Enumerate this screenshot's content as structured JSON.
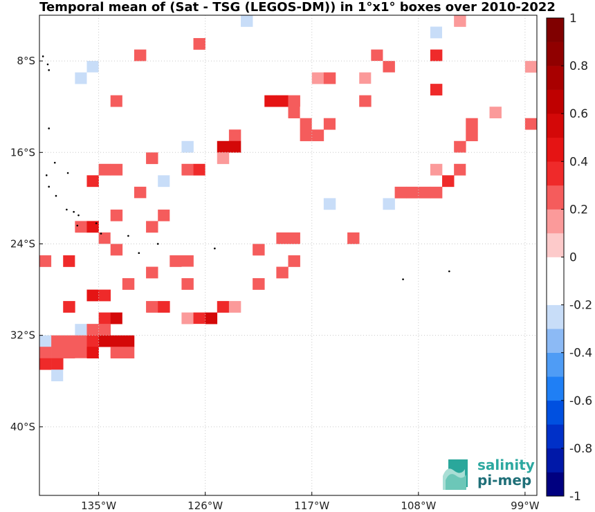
{
  "title": "Temporal mean of (Sat - TSG (LEGOS-DM)) in 1°x1° boxes over 2010-2022",
  "map": {
    "lon_range": [
      -140,
      -98
    ],
    "lat_range": [
      -46,
      -4
    ],
    "x_ticks": [
      {
        "value": -135,
        "label": "135°W"
      },
      {
        "value": -126,
        "label": "126°W"
      },
      {
        "value": -117,
        "label": "117°W"
      },
      {
        "value": -108,
        "label": "108°W"
      },
      {
        "value": -99,
        "label": "99°W"
      }
    ],
    "y_ticks": [
      {
        "value": -8,
        "label": "8°S"
      },
      {
        "value": -16,
        "label": "16°S"
      },
      {
        "value": -24,
        "label": "24°S"
      },
      {
        "value": -32,
        "label": "32°S"
      },
      {
        "value": -40,
        "label": "40°S"
      }
    ],
    "grid": true
  },
  "colorbar": {
    "range": [
      -1,
      1
    ],
    "ticks": [
      {
        "value": 1,
        "label": "1"
      },
      {
        "value": 0.8,
        "label": "0.8"
      },
      {
        "value": 0.6,
        "label": "0.6"
      },
      {
        "value": 0.4,
        "label": "0.4"
      },
      {
        "value": 0.2,
        "label": "0.2"
      },
      {
        "value": 0,
        "label": "0"
      },
      {
        "value": -0.2,
        "label": "-0.2"
      },
      {
        "value": -0.4,
        "label": "-0.4"
      },
      {
        "value": -0.6,
        "label": "-0.6"
      },
      {
        "value": -0.8,
        "label": "-0.8"
      },
      {
        "value": -1,
        "label": "-1"
      }
    ],
    "colors": [
      "#000080",
      "#0018a8",
      "#0030c8",
      "#0050e0",
      "#1f7ff5",
      "#4f9cf5",
      "#8cbaf5",
      "#c8ddf8",
      "#ffffff",
      "#ffffff",
      "#fdcaca",
      "#fb9a9a",
      "#f55c5c",
      "#ef2a2a",
      "#e51414",
      "#d40808",
      "#bf0000",
      "#a80000",
      "#900000",
      "#800000"
    ]
  },
  "chart_data": {
    "type": "heatmap",
    "title": "Temporal mean of (Sat - TSG (LEGOS-DM)) in 1°x1° boxes over 2010-2022",
    "x_axis": "longitude (°W)",
    "y_axis": "latitude (°S)",
    "value_range": [
      -1,
      1
    ],
    "cells": [
      [
        -122.5,
        -4.5,
        -0.3
      ],
      [
        -104.5,
        -4.5,
        0.15
      ],
      [
        -102.5,
        -4.5,
        -0.1
      ],
      [
        -106.5,
        -5.5,
        -0.3
      ],
      [
        -105.5,
        -5.5,
        -0.15
      ],
      [
        -128.5,
        -6.5,
        -0.15
      ],
      [
        -126.5,
        -6.5,
        0.2
      ],
      [
        -103.5,
        -6.5,
        -0.1
      ],
      [
        -131.5,
        -7.5,
        0.2
      ],
      [
        -111.5,
        -7.5,
        0.2
      ],
      [
        -110.5,
        -7.5,
        -0.15
      ],
      [
        -106.5,
        -7.5,
        0.3
      ],
      [
        -135.5,
        -8.5,
        -0.3
      ],
      [
        -134.5,
        -8.5,
        -0.1
      ],
      [
        -132.5,
        -8.5,
        -0.15
      ],
      [
        -111.5,
        -8.5,
        -0.15
      ],
      [
        -110.5,
        -8.5,
        0.2
      ],
      [
        -108.5,
        -8.5,
        -0.15
      ],
      [
        -107.5,
        -8.5,
        -0.15
      ],
      [
        -98.5,
        -8.5,
        0.15
      ],
      [
        -137.5,
        -9.5,
        -0.15
      ],
      [
        -136.5,
        -9.5,
        -0.3
      ],
      [
        -135.5,
        -9.5,
        -0.15
      ],
      [
        -133.5,
        -9.5,
        -0.15
      ],
      [
        -116.5,
        -9.5,
        0.15
      ],
      [
        -115.5,
        -9.5,
        0.2
      ],
      [
        -112.5,
        -9.5,
        0.15
      ],
      [
        -111.5,
        -9.5,
        -0.15
      ],
      [
        -110.5,
        -9.5,
        -0.15
      ],
      [
        -138.5,
        -10.5,
        -0.15
      ],
      [
        -117.5,
        -10.5,
        -0.15
      ],
      [
        -112.5,
        -10.5,
        -0.15
      ],
      [
        -111.5,
        -10.5,
        -0.15
      ],
      [
        -106.5,
        -10.5,
        0.3
      ],
      [
        -103.5,
        -10.5,
        -0.15
      ],
      [
        -99.5,
        -10.5,
        -0.15
      ],
      [
        -139.5,
        -11.5,
        -0.15
      ],
      [
        -133.5,
        -11.5,
        0.2
      ],
      [
        -132.5,
        -11.5,
        -0.15
      ],
      [
        -120.5,
        -11.5,
        0.4
      ],
      [
        -119.5,
        -11.5,
        0.4
      ],
      [
        -118.5,
        -11.5,
        0.2
      ],
      [
        -112.5,
        -11.5,
        0.2
      ],
      [
        -118.5,
        -12.5,
        0.2
      ],
      [
        -117.5,
        -12.5,
        -0.15
      ],
      [
        -116.5,
        -12.5,
        -0.2
      ],
      [
        -109.5,
        -12.5,
        -0.15
      ],
      [
        -101.5,
        -12.5,
        0.15
      ],
      [
        -124.5,
        -13.5,
        -0.15
      ],
      [
        -123.5,
        -13.5,
        -0.15
      ],
      [
        -122.5,
        -13.5,
        -0.15
      ],
      [
        -121.5,
        -13.5,
        -0.15
      ],
      [
        -119.5,
        -13.5,
        -0.15
      ],
      [
        -117.5,
        -13.5,
        0.2
      ],
      [
        -116.5,
        -13.5,
        -0.15
      ],
      [
        -115.5,
        -13.5,
        0.2
      ],
      [
        -114.5,
        -13.5,
        -0.15
      ],
      [
        -103.5,
        -13.5,
        0.2
      ],
      [
        -98.5,
        -13.5,
        0.2
      ],
      [
        -138.5,
        -14.5,
        -0.15
      ],
      [
        -127.5,
        -14.5,
        -0.15
      ],
      [
        -123.5,
        -14.5,
        0.2
      ],
      [
        -117.5,
        -14.5,
        0.2
      ],
      [
        -116.5,
        -14.5,
        0.2
      ],
      [
        -103.5,
        -14.5,
        0.2
      ],
      [
        -128.5,
        -15.5,
        -0.15
      ],
      [
        -127.5,
        -15.5,
        -0.3
      ],
      [
        -124.5,
        -15.5,
        0.5
      ],
      [
        -123.5,
        -15.5,
        0.5
      ],
      [
        -120.5,
        -15.5,
        -0.15
      ],
      [
        -113.5,
        -15.5,
        -0.15
      ],
      [
        -106.5,
        -15.5,
        -0.15
      ],
      [
        -104.5,
        -15.5,
        0.2
      ],
      [
        -130.5,
        -16.5,
        0.2
      ],
      [
        -124.5,
        -16.5,
        0.15
      ],
      [
        -117.5,
        -16.5,
        -0.15
      ],
      [
        -134.5,
        -17.5,
        0.2
      ],
      [
        -133.5,
        -17.5,
        0.2
      ],
      [
        -131.5,
        -17.5,
        -0.15
      ],
      [
        -129.5,
        -17.5,
        -0.2
      ],
      [
        -127.5,
        -17.5,
        0.2
      ],
      [
        -126.5,
        -17.5,
        0.3
      ],
      [
        -125.5,
        -17.5,
        -0.15
      ],
      [
        -108.5,
        -17.5,
        -0.15
      ],
      [
        -106.5,
        -17.5,
        0.15
      ],
      [
        -104.5,
        -17.5,
        0.2
      ],
      [
        -103.5,
        -17.5,
        -0.15
      ],
      [
        -135.5,
        -18.5,
        0.3
      ],
      [
        -129.5,
        -18.5,
        -0.3
      ],
      [
        -128.5,
        -18.5,
        -0.15
      ],
      [
        -125.5,
        -18.5,
        -0.15
      ],
      [
        -123.5,
        -18.5,
        -0.1
      ],
      [
        -105.5,
        -18.5,
        0.3
      ],
      [
        -131.5,
        -19.5,
        0.2
      ],
      [
        -128.5,
        -19.5,
        -0.15
      ],
      [
        -126.5,
        -19.5,
        -0.15
      ],
      [
        -125.5,
        -19.5,
        -0.15
      ],
      [
        -109.5,
        -19.5,
        0.2
      ],
      [
        -108.5,
        -19.5,
        0.2
      ],
      [
        -107.5,
        -19.5,
        0.2
      ],
      [
        -106.5,
        -19.5,
        0.2
      ],
      [
        -133.5,
        -20.5,
        -0.15
      ],
      [
        -132.5,
        -20.5,
        -0.2
      ],
      [
        -131.5,
        -20.5,
        -0.15
      ],
      [
        -129.5,
        -20.5,
        -0.15
      ],
      [
        -128.5,
        -20.5,
        -0.15
      ],
      [
        -127.5,
        -20.5,
        -0.15
      ],
      [
        -125.5,
        -20.5,
        -0.15
      ],
      [
        -115.5,
        -20.5,
        -0.3
      ],
      [
        -111.5,
        -20.5,
        -0.15
      ],
      [
        -110.5,
        -20.5,
        -0.3
      ],
      [
        -133.5,
        -21.5,
        0.2
      ],
      [
        -129.5,
        -21.5,
        0.2
      ],
      [
        -128.5,
        -21.5,
        -0.15
      ],
      [
        -118.5,
        -21.5,
        -0.15
      ],
      [
        -114.5,
        -21.5,
        -0.15
      ],
      [
        -113.5,
        -21.5,
        -0.15
      ],
      [
        -136.5,
        -22.5,
        0.2
      ],
      [
        -135.5,
        -22.5,
        0.4
      ],
      [
        -130.5,
        -22.5,
        0.2
      ],
      [
        -118.5,
        -22.5,
        -0.15
      ],
      [
        -137.5,
        -23.5,
        -0.15
      ],
      [
        -134.5,
        -23.5,
        0.2
      ],
      [
        -133.5,
        -23.5,
        -0.15
      ],
      [
        -122.5,
        -23.5,
        -0.15
      ],
      [
        -121.5,
        -23.5,
        -0.15
      ],
      [
        -119.5,
        -23.5,
        0.2
      ],
      [
        -118.5,
        -23.5,
        0.2
      ],
      [
        -113.5,
        -23.5,
        0.2
      ],
      [
        -137.5,
        -24.5,
        -0.15
      ],
      [
        -135.5,
        -24.5,
        -0.15
      ],
      [
        -134.5,
        -24.5,
        -0.15
      ],
      [
        -133.5,
        -24.5,
        0.2
      ],
      [
        -121.5,
        -24.5,
        0.2
      ],
      [
        -139.5,
        -25.5,
        0.2
      ],
      [
        -138.5,
        -25.5,
        -0.2
      ],
      [
        -137.5,
        -25.5,
        0.3
      ],
      [
        -136.5,
        -25.5,
        -0.15
      ],
      [
        -128.5,
        -25.5,
        0.2
      ],
      [
        -127.5,
        -25.5,
        0.2
      ],
      [
        -122.5,
        -25.5,
        -0.15
      ],
      [
        -119.5,
        -25.5,
        -0.15
      ],
      [
        -118.5,
        -25.5,
        0.2
      ],
      [
        -116.5,
        -25.5,
        -0.15
      ],
      [
        -136.5,
        -26.5,
        -0.15
      ],
      [
        -130.5,
        -26.5,
        0.2
      ],
      [
        -127.5,
        -26.5,
        -0.15
      ],
      [
        -119.5,
        -26.5,
        0.2
      ],
      [
        -135.5,
        -27.5,
        -0.15
      ],
      [
        -132.5,
        -27.5,
        0.2
      ],
      [
        -127.5,
        -27.5,
        0.2
      ],
      [
        -124.5,
        -27.5,
        -0.15
      ],
      [
        -123.5,
        -27.5,
        -0.15
      ],
      [
        -121.5,
        -27.5,
        0.2
      ],
      [
        -135.5,
        -28.5,
        0.4
      ],
      [
        -134.5,
        -28.5,
        0.3
      ],
      [
        -125.5,
        -28.5,
        -0.15
      ],
      [
        -123.5,
        -28.5,
        -0.15
      ],
      [
        -138.5,
        -29.5,
        -0.15
      ],
      [
        -137.5,
        -29.5,
        0.3
      ],
      [
        -132.5,
        -29.5,
        -0.15
      ],
      [
        -130.5,
        -29.5,
        0.2
      ],
      [
        -129.5,
        -29.5,
        0.3
      ],
      [
        -125.5,
        -29.5,
        -0.15
      ],
      [
        -124.5,
        -29.5,
        0.3
      ],
      [
        -123.5,
        -29.5,
        0.15
      ],
      [
        -135.5,
        -30.5,
        -0.15
      ],
      [
        -134.5,
        -30.5,
        0.3
      ],
      [
        -133.5,
        -30.5,
        0.5
      ],
      [
        -132.5,
        -30.5,
        -0.15
      ],
      [
        -131.5,
        -30.5,
        -0.2
      ],
      [
        -127.5,
        -30.5,
        0.15
      ],
      [
        -126.5,
        -30.5,
        0.3
      ],
      [
        -125.5,
        -30.5,
        0.5
      ],
      [
        -138.5,
        -31.5,
        -0.15
      ],
      [
        -136.5,
        -31.5,
        -0.3
      ],
      [
        -135.5,
        -31.5,
        0.2
      ],
      [
        -134.5,
        -31.5,
        0.2
      ],
      [
        -126.5,
        -31.5,
        -0.15
      ],
      [
        -139.5,
        -32.5,
        -0.3
      ],
      [
        -138.5,
        -32.5,
        0.2
      ],
      [
        -137.5,
        -32.5,
        0.2
      ],
      [
        -136.5,
        -32.5,
        0.2
      ],
      [
        -135.5,
        -32.5,
        0.3
      ],
      [
        -134.5,
        -32.5,
        0.5
      ],
      [
        -133.5,
        -32.5,
        0.5
      ],
      [
        -132.5,
        -32.5,
        0.5
      ],
      [
        -128.5,
        -32.5,
        -0.15
      ],
      [
        -139.5,
        -33.5,
        0.2
      ],
      [
        -138.5,
        -33.5,
        0.2
      ],
      [
        -137.5,
        -33.5,
        0.2
      ],
      [
        -136.5,
        -33.5,
        0.2
      ],
      [
        -135.5,
        -33.5,
        0.4
      ],
      [
        -133.5,
        -33.5,
        0.2
      ],
      [
        -132.5,
        -33.5,
        0.2
      ],
      [
        -139.5,
        -34.5,
        0.3
      ],
      [
        -138.5,
        -34.5,
        0.3
      ],
      [
        -136.5,
        -34.5,
        -0.15
      ],
      [
        -134.5,
        -34.5,
        -0.15
      ],
      [
        -138.5,
        -35.5,
        -0.3
      ],
      [
        -137.5,
        -35.5,
        -0.15
      ],
      [
        -136.5,
        -35.5,
        -0.15
      ]
    ],
    "islands": [
      [
        -139.7,
        -7.6
      ],
      [
        -139.3,
        -8.3
      ],
      [
        -139.2,
        -8.8
      ],
      [
        -139.2,
        -13.9
      ],
      [
        -138.7,
        -16.9
      ],
      [
        -137.6,
        -17.8
      ],
      [
        -139.4,
        -18.0
      ],
      [
        -139.2,
        -19.0
      ],
      [
        -138.6,
        -19.8
      ],
      [
        -137.7,
        -21.0
      ],
      [
        -137.1,
        -21.2
      ],
      [
        -136.7,
        -21.5
      ],
      [
        -136.8,
        -22.4
      ],
      [
        -135.2,
        -22.2
      ],
      [
        -134.8,
        -23.1
      ],
      [
        -132.5,
        -23.3
      ],
      [
        -131.6,
        -24.8
      ],
      [
        -130.0,
        -24.0
      ],
      [
        -125.2,
        -24.4
      ],
      [
        -109.3,
        -27.1
      ],
      [
        -105.4,
        -26.4
      ]
    ]
  },
  "logo": {
    "line1": "salinity",
    "line2": "pi-mep"
  }
}
